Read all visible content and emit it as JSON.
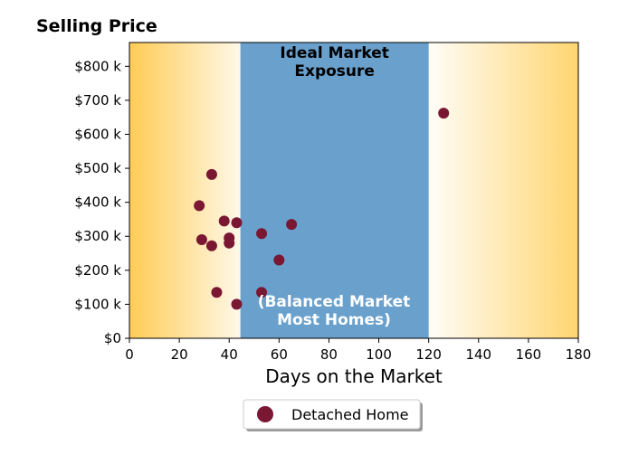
{
  "chart_data": {
    "type": "scatter",
    "title": "Selling Price",
    "xlabel": "Days on the Market",
    "ylabel": "",
    "xlim": [
      0,
      180
    ],
    "ylim": [
      0,
      870000
    ],
    "x_ticks": [
      0,
      20,
      40,
      60,
      80,
      100,
      120,
      140,
      160,
      180
    ],
    "x_tick_labels": [
      "0",
      "20",
      "40",
      "60",
      "80",
      "100",
      "120",
      "140",
      "160",
      "180"
    ],
    "y_ticks": [
      0,
      100000,
      200000,
      300000,
      400000,
      500000,
      600000,
      700000,
      800000
    ],
    "y_tick_labels": [
      "$0",
      "$100 k",
      "$200 k",
      "$300 k",
      "$400 k",
      "$500 k",
      "$600 k",
      "$700 k",
      "$800 k"
    ],
    "grid": false,
    "legend_position": "below",
    "colors": {
      "point": "#7a1733",
      "band": "#6aa0cc",
      "gradient_edge": "#ffcc55",
      "gradient_inner": "#fff8e8"
    },
    "band": {
      "x_start": 44.5,
      "x_end": 120,
      "label_top": [
        "Ideal Market",
        "Exposure"
      ],
      "label_bottom": [
        "(Balanced Market",
        "Most Homes)"
      ]
    },
    "series": [
      {
        "name": "Detached Home",
        "points": [
          {
            "x": 28,
            "y": 390000
          },
          {
            "x": 29,
            "y": 290000
          },
          {
            "x": 33,
            "y": 482000
          },
          {
            "x": 33,
            "y": 272000
          },
          {
            "x": 35,
            "y": 135000
          },
          {
            "x": 38,
            "y": 345000
          },
          {
            "x": 40,
            "y": 295000
          },
          {
            "x": 40,
            "y": 280000
          },
          {
            "x": 43,
            "y": 340000
          },
          {
            "x": 43,
            "y": 100000
          },
          {
            "x": 53,
            "y": 308000
          },
          {
            "x": 53,
            "y": 135000
          },
          {
            "x": 60,
            "y": 230000
          },
          {
            "x": 65,
            "y": 335000
          },
          {
            "x": 126,
            "y": 662000
          }
        ]
      }
    ]
  }
}
